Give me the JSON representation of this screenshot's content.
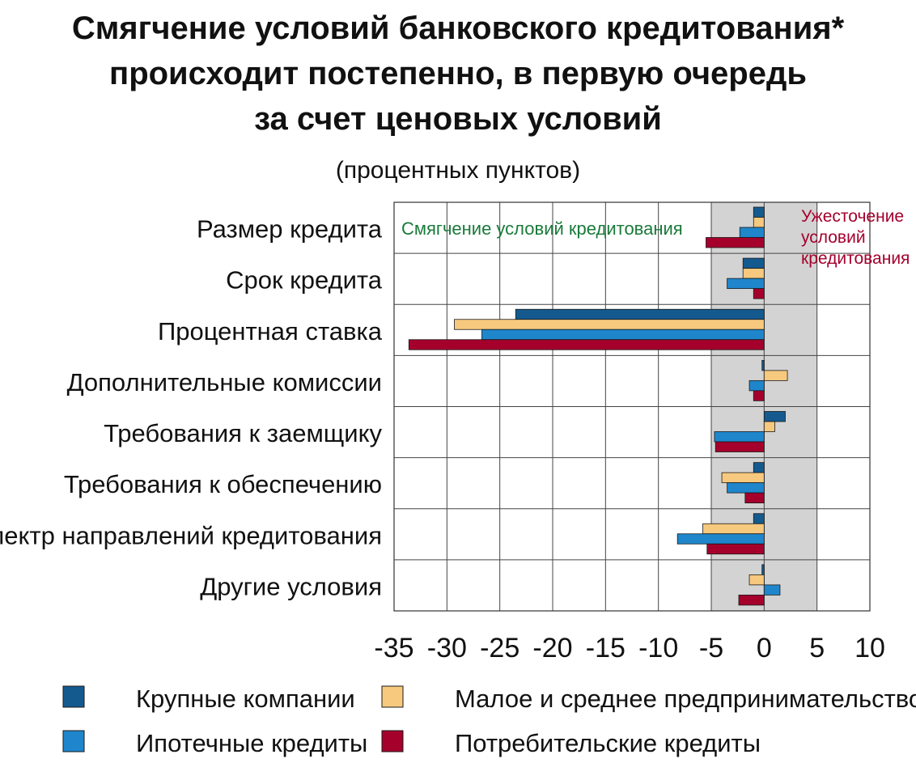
{
  "chart_data": {
    "type": "bar",
    "orientation": "horizontal",
    "title_lines": [
      "Смягчение условий банковского кредитования*",
      "происходит постепенно, в первую очередь",
      "за счет ценовых условий"
    ],
    "subtitle": "(процентных пунктов)",
    "annotations": {
      "easing": "Смягчение условий кредитования",
      "tightening_lines": [
        "Ужесточение",
        "условий",
        "кредитования"
      ]
    },
    "categories": [
      "Размер кредита",
      "Срок кредита",
      "Процентная ставка",
      "Дополнительные комиссии",
      "Требования к заемщику",
      "Требования к обеспечению",
      "Спектр направлений кредитования",
      "Другие условия"
    ],
    "series": [
      {
        "name": "Крупные компании",
        "color": "#145a8f",
        "values": [
          -1.0,
          -2.0,
          -23.5,
          -0.2,
          2.0,
          -1.0,
          -1.0,
          -0.2
        ]
      },
      {
        "name": "Малое и среднее предпринимательство",
        "color": "#f7c97e",
        "values": [
          -1.0,
          -2.0,
          -29.3,
          2.2,
          1.0,
          -4.0,
          -5.8,
          -1.4
        ]
      },
      {
        "name": "Ипотечные кредиты",
        "color": "#1f86cc",
        "values": [
          -2.3,
          -3.5,
          -26.7,
          -1.4,
          -4.7,
          -3.5,
          -8.2,
          1.5
        ]
      },
      {
        "name": "Потребительские кредиты",
        "color": "#a5002c",
        "values": [
          -5.5,
          -1.0,
          -33.6,
          -1.0,
          -4.6,
          -1.8,
          -5.4,
          -2.4
        ]
      }
    ],
    "xlim": [
      -35,
      10
    ],
    "xticks": [
      -35,
      -30,
      -25,
      -20,
      -15,
      -10,
      -5,
      0,
      5,
      10
    ],
    "tightening_zone": [
      -5,
      5
    ],
    "grid": true,
    "legend_position": "bottom",
    "colors": {
      "zone": "#d3d3d3",
      "easing_text": "#1a7a3a",
      "tightening_text": "#a5002c"
    }
  }
}
